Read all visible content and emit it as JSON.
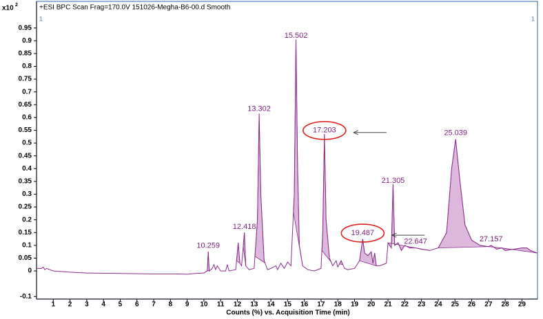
{
  "chart_data": {
    "type": "line",
    "title": "+ESI BPC Scan Frag=170.0V 151026-Megha-B6-00.d  Smooth",
    "y_scale_label": "x10",
    "y_scale_exponent": "2",
    "panel_labels": [
      1,
      1
    ],
    "x_label": "Counts (%) vs. Acquisition Time (min)",
    "xlim": [
      0,
      29.93
    ],
    "ylim": [
      -0.11,
      1.054
    ],
    "xticks": [
      1,
      2,
      3,
      4,
      5,
      6,
      7,
      8,
      9,
      10,
      11,
      12,
      13,
      14,
      15,
      16,
      17,
      18,
      19,
      20,
      21,
      22,
      23,
      24,
      25,
      26,
      27,
      28,
      29
    ],
    "yticks": [
      -0.1,
      0,
      0.05,
      0.1,
      0.15,
      0.2,
      0.25,
      0.3,
      0.35,
      0.4,
      0.45,
      0.5,
      0.55,
      0.6,
      0.65,
      0.7,
      0.75,
      0.8,
      0.85,
      0.9,
      0.95
    ],
    "color": "#8b2d8b",
    "fill_color": "#dcb8dc",
    "x": [
      0,
      0.3,
      0.4,
      0.5,
      0.6,
      1,
      2,
      3,
      5,
      7,
      8.5,
      9,
      9.5,
      10.0,
      10.2,
      10.26,
      10.32,
      10.5,
      10.6,
      10.7,
      10.8,
      11.0,
      11.3,
      11.4,
      11.5,
      11.9,
      12.05,
      12.15,
      12.25,
      12.42,
      12.5,
      12.7,
      13.0,
      13.2,
      13.3,
      13.4,
      13.6,
      13.8,
      14.0,
      14.3,
      14.4,
      14.6,
      14.8,
      15.0,
      15.2,
      15.4,
      15.5,
      15.6,
      15.7,
      15.9,
      16.2,
      16.6,
      17.0,
      17.1,
      17.2,
      17.3,
      17.5,
      17.7,
      17.9,
      18.0,
      18.2,
      18.4,
      18.6,
      19.0,
      19.3,
      19.49,
      19.6,
      19.8,
      20.0,
      20.1,
      20.2,
      20.3,
      20.5,
      20.9,
      21.0,
      21.2,
      21.3,
      21.4,
      21.6,
      21.8,
      22.0,
      22.3,
      22.65,
      23.0,
      23.5,
      24.0,
      24.5,
      24.8,
      25.04,
      25.3,
      25.6,
      26.0,
      26.5,
      27.0,
      27.16,
      27.5,
      27.8,
      28.0,
      28.5,
      29.0,
      29.3,
      29.5,
      29.9
    ],
    "values": [
      0.01,
      0.01,
      0.015,
      0.005,
      0.01,
      0.0,
      -0.005,
      -0.008,
      -0.01,
      -0.012,
      -0.012,
      -0.013,
      -0.01,
      -0.008,
      0.0,
      0.075,
      0.0,
      0.01,
      0.025,
      0.005,
      0.02,
      0.0,
      0.0,
      0.025,
      0.0,
      0.005,
      0.11,
      0.03,
      0.02,
      0.15,
      0.02,
      0.005,
      0.01,
      0.2,
      0.615,
      0.3,
      0.04,
      0.005,
      0.01,
      0.02,
      0.005,
      0.03,
      0.01,
      0.035,
      0.02,
      0.3,
      0.905,
      0.4,
      0.1,
      0.02,
      0.005,
      0.0,
      0.01,
      0.15,
      0.535,
      0.2,
      0.05,
      0.02,
      0.04,
      0.015,
      0.04,
      0.01,
      0.005,
      0.01,
      0.04,
      0.125,
      0.07,
      0.06,
      0.075,
      0.03,
      0.07,
      0.02,
      0.02,
      0.03,
      0.11,
      0.09,
      0.34,
      0.1,
      0.11,
      0.08,
      0.1,
      0.09,
      0.09,
      0.085,
      0.08,
      0.09,
      0.15,
      0.4,
      0.515,
      0.35,
      0.18,
      0.12,
      0.1,
      0.095,
      0.1,
      0.085,
      0.09,
      0.08,
      0.085,
      0.09,
      0.09,
      0.08,
      0.07
    ],
    "integration_regions": [
      [
        10.2,
        10.35
      ],
      [
        11.95,
        12.15
      ],
      [
        12.35,
        12.5
      ],
      [
        13.05,
        13.65
      ],
      [
        15.35,
        15.9
      ],
      [
        17.05,
        17.6
      ],
      [
        18.1,
        18.3
      ],
      [
        19.3,
        20.3
      ],
      [
        21.0,
        22.65
      ],
      [
        22.65,
        23.5
      ],
      [
        24.0,
        27.0
      ],
      [
        27.0,
        27.8
      ],
      [
        27.8,
        29.9
      ]
    ],
    "annotations": [
      {
        "x": 10.259,
        "circled": false
      },
      {
        "x": 12.418,
        "circled": false
      },
      {
        "x": 13.302,
        "circled": false
      },
      {
        "x": 15.502,
        "circled": false
      },
      {
        "x": 17.203,
        "circled": true
      },
      {
        "x": 19.487,
        "circled": true
      },
      {
        "x": 21.305,
        "circled": false
      },
      {
        "x": 22.647,
        "circled": false
      },
      {
        "x": 25.039,
        "circled": false
      },
      {
        "x": 27.157,
        "circled": false
      }
    ]
  }
}
